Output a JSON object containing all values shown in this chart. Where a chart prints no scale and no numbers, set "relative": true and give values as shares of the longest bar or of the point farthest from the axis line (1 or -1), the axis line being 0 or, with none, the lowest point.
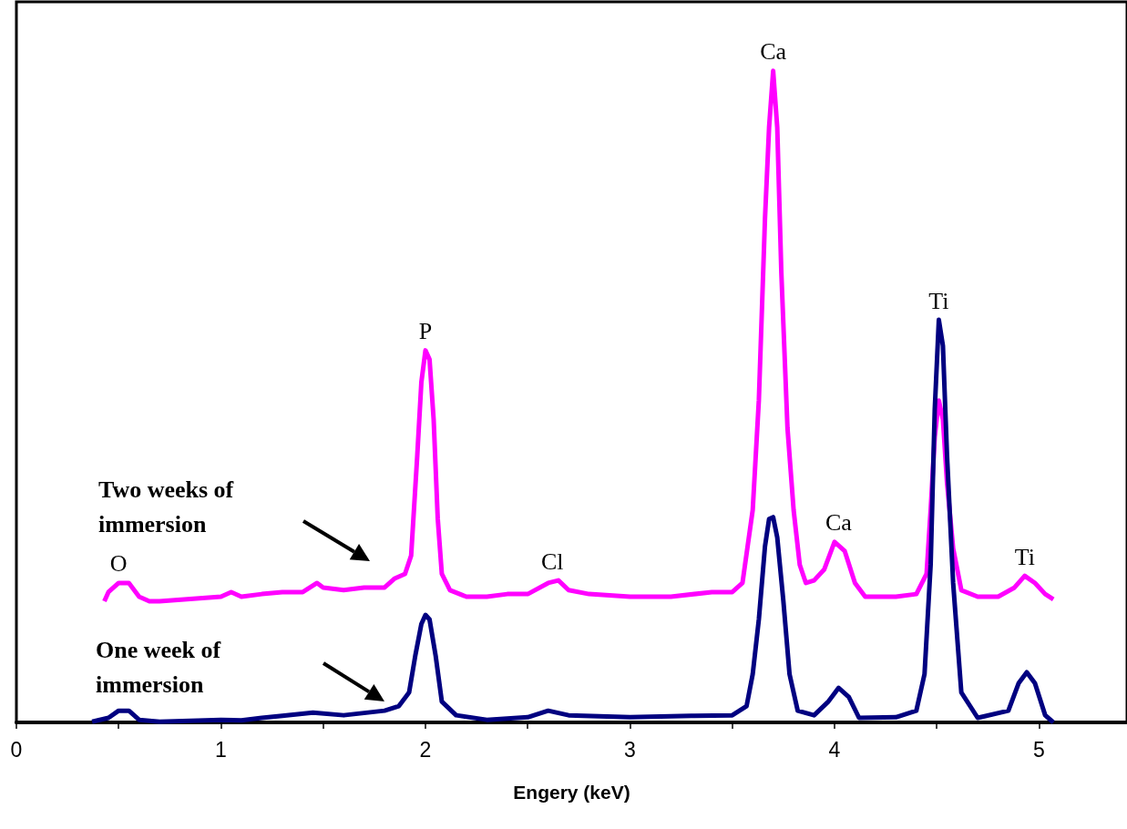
{
  "chart_data": {
    "type": "line",
    "xlabel": "Engery (keV)",
    "relative": true,
    "xlim": [
      0,
      5.43
    ],
    "xticks": [
      0,
      {
        "value": 0.5,
        "label": null
      },
      1,
      {
        "value": 1.5,
        "label": null
      },
      2,
      {
        "value": 2.5,
        "label": null
      },
      3,
      {
        "value": 3.5,
        "label": null
      },
      4,
      {
        "value": 4.5,
        "label": null
      },
      5
    ],
    "tick_labels": "x",
    "grid": false,
    "marker": "none",
    "line_style": "solid",
    "x": [
      0.43,
      0.45,
      0.5,
      0.55,
      0.6,
      0.65,
      0.7,
      1.0,
      1.05,
      1.1,
      1.2,
      1.3,
      1.4,
      1.47,
      1.5,
      1.6,
      1.7,
      1.8,
      1.85,
      1.9,
      1.93,
      1.96,
      1.98,
      2.0,
      2.02,
      2.04,
      2.06,
      2.08,
      2.12,
      2.2,
      2.3,
      2.4,
      2.5,
      2.6,
      2.65,
      2.7,
      2.8,
      3.0,
      3.2,
      3.4,
      3.5,
      3.55,
      3.6,
      3.63,
      3.66,
      3.68,
      3.7,
      3.72,
      3.74,
      3.77,
      3.8,
      3.83,
      3.86,
      3.9,
      3.95,
      4.0,
      4.05,
      4.1,
      4.15,
      4.3,
      4.4,
      4.45,
      4.47,
      4.49,
      4.51,
      4.53,
      4.55,
      4.58,
      4.62,
      4.7,
      4.8,
      4.88,
      4.93,
      4.98,
      5.03,
      5.07
    ],
    "series": [
      {
        "color": "#ff00ff",
        "values": [
          0.186,
          0.2,
          0.214,
          0.214,
          0.193,
          0.186,
          0.186,
          0.193,
          0.2,
          0.193,
          0.197,
          0.2,
          0.2,
          0.214,
          0.207,
          0.203,
          0.207,
          0.207,
          0.221,
          0.228,
          0.256,
          0.41,
          0.522,
          0.571,
          0.557,
          0.465,
          0.313,
          0.228,
          0.203,
          0.193,
          0.193,
          0.197,
          0.197,
          0.214,
          0.218,
          0.203,
          0.197,
          0.193,
          0.193,
          0.2,
          0.2,
          0.214,
          0.326,
          0.494,
          0.773,
          0.913,
          1,
          0.913,
          0.69,
          0.452,
          0.326,
          0.242,
          0.214,
          0.218,
          0.235,
          0.277,
          0.263,
          0.214,
          0.193,
          0.193,
          0.197,
          0.228,
          0.326,
          0.438,
          0.494,
          0.465,
          0.368,
          0.267,
          0.203,
          0.193,
          0.193,
          0.207,
          0.225,
          0.214,
          0.197,
          0.189
        ]
      },
      {
        "color": "#000080",
        "x": [
          0.37,
          0.45,
          0.5,
          0.55,
          0.6,
          0.7,
          1.0,
          1.1,
          1.2,
          1.3,
          1.45,
          1.6,
          1.8,
          1.87,
          1.92,
          1.95,
          1.98,
          2.0,
          2.02,
          2.05,
          2.08,
          2.15,
          2.3,
          2.5,
          2.6,
          2.7,
          3.0,
          3.3,
          3.5,
          3.57,
          3.6,
          3.63,
          3.66,
          3.68,
          3.7,
          3.72,
          3.75,
          3.78,
          3.82,
          3.9,
          3.97,
          4.02,
          4.07,
          4.12,
          4.3,
          4.4,
          4.44,
          4.47,
          4.49,
          4.51,
          4.53,
          4.55,
          4.58,
          4.62,
          4.7,
          4.85,
          4.9,
          4.94,
          4.98,
          5.03,
          5.07
        ],
        "values": [
          0.001,
          0.007,
          0.018,
          0.018,
          0.004,
          0.001,
          0.004,
          0.003,
          0.007,
          0.01,
          0.015,
          0.011,
          0.018,
          0.025,
          0.046,
          0.102,
          0.151,
          0.165,
          0.158,
          0.102,
          0.032,
          0.011,
          0.004,
          0.008,
          0.018,
          0.011,
          0.008,
          0.01,
          0.011,
          0.025,
          0.074,
          0.158,
          0.27,
          0.312,
          0.315,
          0.284,
          0.186,
          0.074,
          0.018,
          0.011,
          0.032,
          0.053,
          0.039,
          0.007,
          0.008,
          0.018,
          0.074,
          0.242,
          0.48,
          0.618,
          0.578,
          0.41,
          0.214,
          0.046,
          0.007,
          0.018,
          0.06,
          0.077,
          0.06,
          0.011,
          0
        ]
      }
    ],
    "annotations": [
      {
        "text": "O",
        "x": 0.5,
        "y": 0.214
      },
      {
        "text": "P",
        "x": 2.0,
        "y": 0.571
      },
      {
        "text": "Cl",
        "x": 2.62,
        "y": 0.218
      },
      {
        "text": "Ca",
        "x": 3.7,
        "y": 1
      },
      {
        "text": "Ca",
        "x": 4.02,
        "y": 0.277
      },
      {
        "text": "Ti",
        "x": 4.51,
        "y": 0.618
      },
      {
        "text": "Ti",
        "x": 4.93,
        "y": 0.225
      },
      "Two weeks of immersion",
      "One week of immersion"
    ]
  }
}
